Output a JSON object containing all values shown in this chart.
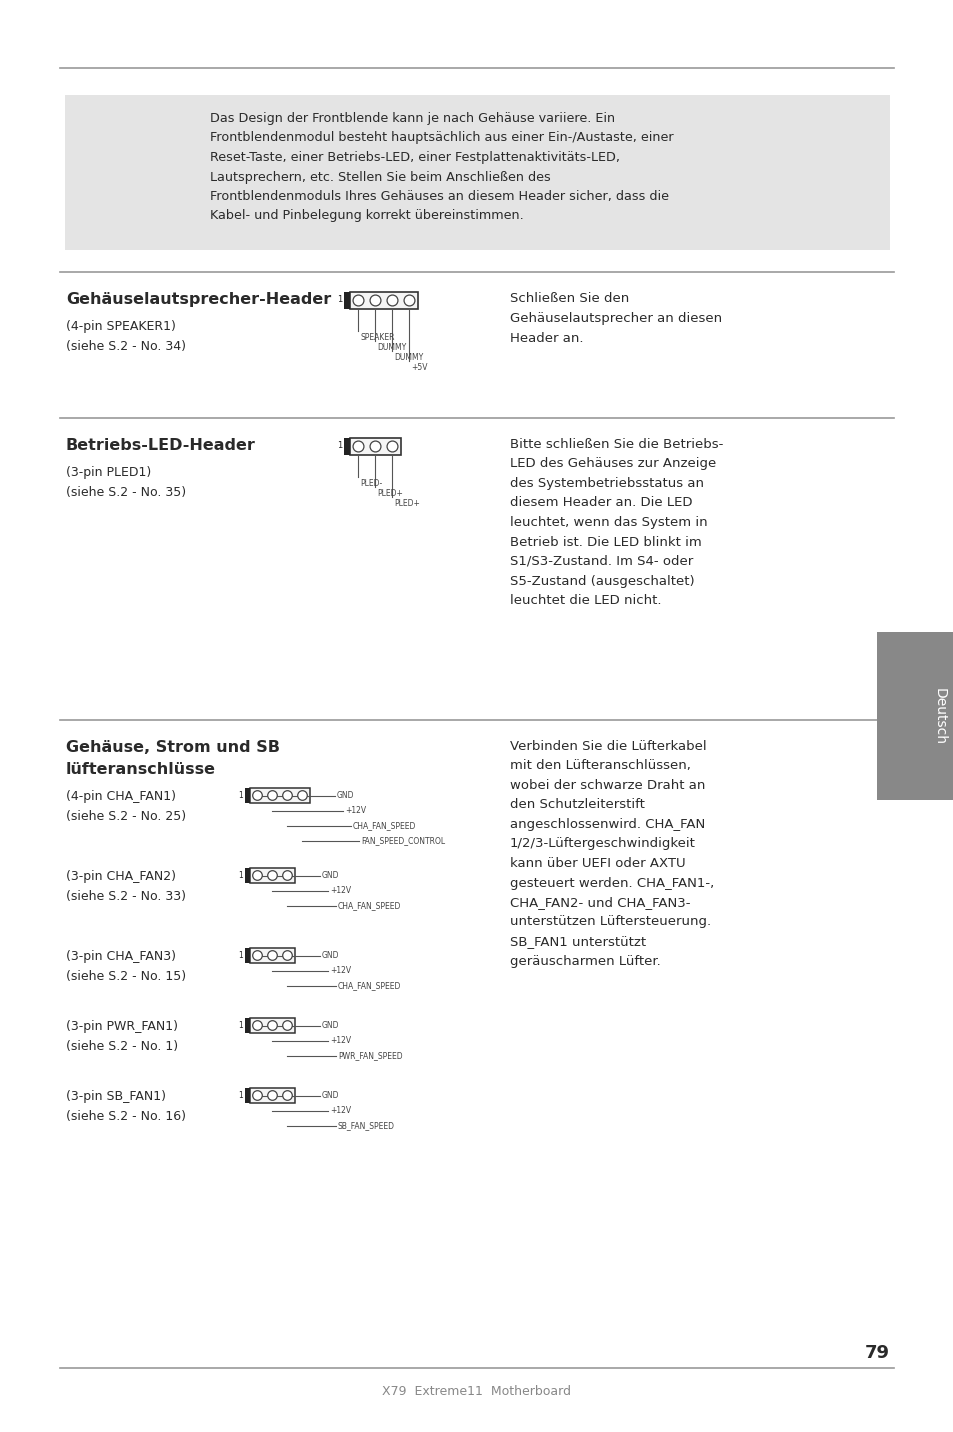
{
  "page_bg": "#ffffff",
  "text_color": "#2a2a2a",
  "gray_color": "#888888",
  "line_color": "#999999",
  "box_bg": "#e4e4e4",
  "page_number": "79",
  "footer_text": "X79  Extreme11  Motherboard",
  "sidebar_text": "Deutsch",
  "intro_text": "Das Design der Frontblende kann je nach Gehäuse variiere. Ein\nFrontblendenmodul besteht hauptsächlich aus einer Ein-/Austaste, einer\nReset-Taste, einer Betriebs-LED, einer Festplattenaktivitäts-LED,\nLautsprechern, etc. Stellen Sie beim Anschließen des\nFrontblendenmoduls Ihres Gehäuses an diesem Header sicher, dass die\nKabel- und Pinbelegung korrekt übereinstimmen.",
  "s1_title": "Gehäuselautsprecher-Header",
  "s1_sub1": "(4-pin SPEAKER1)",
  "s1_sub2": "(siehe S.2 - No. 34)",
  "s1_right": "Schließen Sie den\nGehäuselautsprecher an diesen\nHeader an.",
  "s1_pin_labels": [
    "SPEAKER",
    "DUMMY",
    "DUMMY",
    "+5V"
  ],
  "s2_title": "Betriebs-LED-Header",
  "s2_sub1": "(3-pin PLED1)",
  "s2_sub2": "(siehe S.2 - No. 35)",
  "s2_right": "Bitte schließen Sie die Betriebs-\nLED des Gehäuses zur Anzeige\ndes Systembetriebsstatus an\ndiesem Header an. Die LED\nleuchtet, wenn das System in\nBetrieb ist. Die LED blinkt im\nS1/S3-Zustand. Im S4- oder\nS5-Zustand (ausgeschaltet)\nleuchtet die LED nicht.",
  "s2_pin_labels": [
    "PLED-",
    "PLED+",
    "PLED+"
  ],
  "s3_title1": "Gehäuse, Strom und SB",
  "s3_title2": "lüfteranschlüsse",
  "s3_right": "Verbinden Sie die Lüfterkabel\nmit den Lüfteranschlüssen,\nwobei der schwarze Draht an\nden Schutzleiterstift\nangeschlossenwird. CHA_FAN\n1/2/3-Lüftergeschwindigkeit\nkann über UEFI oder AXTU\ngesteuert werden. CHA_FAN1-,\nCHA_FAN2- und CHA_FAN3-\nunterstützen Lüftersteuerung.\nSB_FAN1 unterstützt\ngeräuscharmen Lüfter.",
  "fans": [
    {
      "sub1": "(4-pin CHA_FAN1)",
      "sub2": "(siehe S.2 - No. 25)",
      "pins": 4,
      "labels": [
        "GND",
        "+12V",
        "CHA_FAN_SPEED",
        "FAN_SPEED_CONTROL"
      ]
    },
    {
      "sub1": "(3-pin CHA_FAN2)",
      "sub2": "(siehe S.2 - No. 33)",
      "pins": 3,
      "labels": [
        "GND",
        "+12V",
        "CHA_FAN_SPEED"
      ]
    },
    {
      "sub1": "(3-pin CHA_FAN3)",
      "sub2": "(siehe S.2 - No. 15)",
      "pins": 3,
      "labels": [
        "GND",
        "+12V",
        "CHA_FAN_SPEED"
      ]
    },
    {
      "sub1": "(3-pin PWR_FAN1)",
      "sub2": "(siehe S.2 - No. 1)",
      "pins": 3,
      "labels": [
        "GND",
        "+12V",
        "PWR_FAN_SPEED"
      ]
    },
    {
      "sub1": "(3-pin SB_FAN1)",
      "sub2": "(siehe S.2 - No. 16)",
      "pins": 3,
      "labels": [
        "GND",
        "+12V",
        "SB_FAN_SPEED"
      ]
    }
  ]
}
